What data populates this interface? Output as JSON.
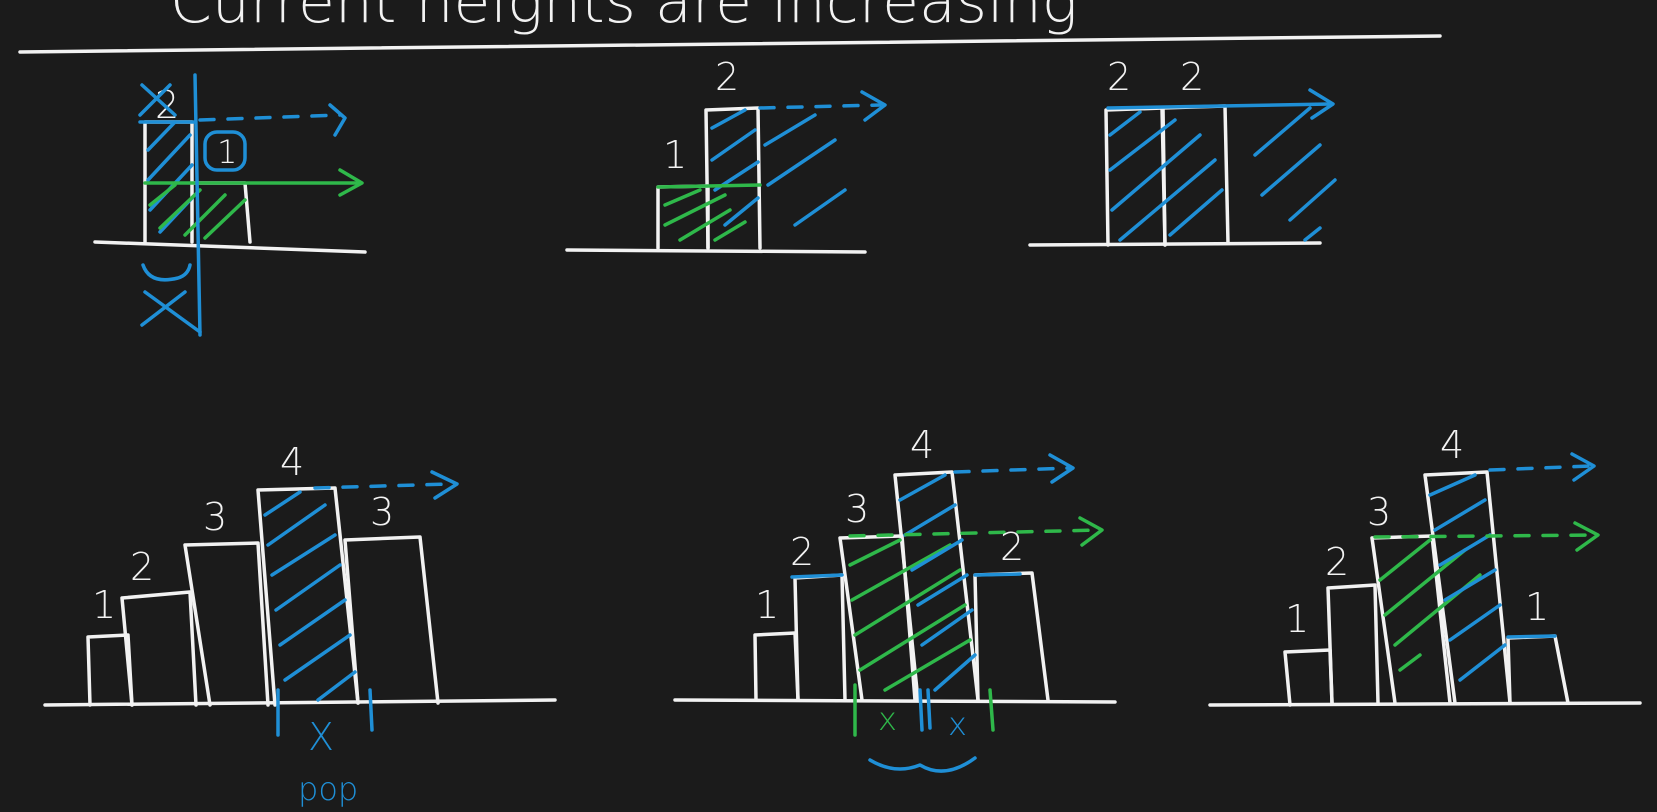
{
  "title": "Current heights are increasing",
  "colors": {
    "background": "#1b1b1b",
    "chalk": "#f2f2f2",
    "blue": "#1f8fd6",
    "green": "#2fb84a"
  },
  "panel1": {
    "height_label_crossed": "2",
    "circled_label": "1",
    "bars": [
      2,
      1
    ]
  },
  "panel2": {
    "bar_labels": [
      "1",
      "2"
    ],
    "bars": [
      1,
      2
    ]
  },
  "panel3": {
    "bar_labels": [
      "2",
      "2"
    ],
    "bars": [
      2,
      2
    ]
  },
  "panel4": {
    "bar_labels": [
      "1",
      "2",
      "3",
      "4",
      "3"
    ],
    "bars": [
      1,
      2,
      3,
      4,
      3
    ],
    "mark": "X",
    "action": "pop"
  },
  "panel5": {
    "bar_labels": [
      "1",
      "2",
      "3",
      "4",
      "2"
    ],
    "bars": [
      1,
      2,
      3,
      4,
      2
    ],
    "green_mark": "x",
    "blue_mark": "x"
  },
  "panel6": {
    "bar_labels": [
      "1",
      "2",
      "3",
      "4",
      "1"
    ],
    "bars": [
      1,
      2,
      3,
      4,
      1
    ]
  }
}
